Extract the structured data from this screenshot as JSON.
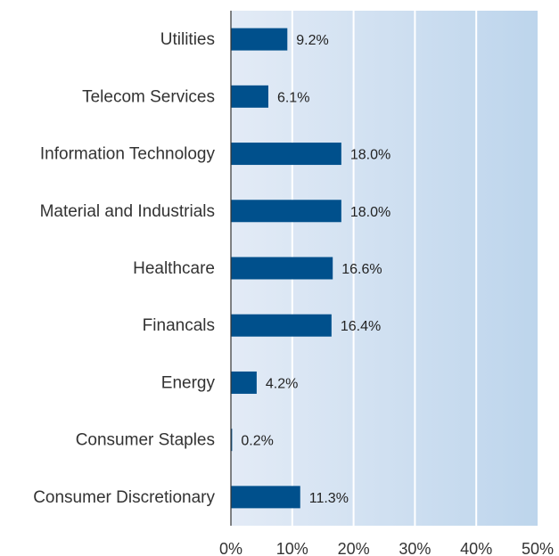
{
  "chart_data": {
    "type": "bar",
    "orientation": "horizontal",
    "categories": [
      "Utilities",
      "Telecom Services",
      "Information Technology",
      "Material and Industrials",
      "Healthcare",
      "Financals",
      "Energy",
      "Consumer Staples",
      "Consumer Discretionary"
    ],
    "values": [
      9.2,
      6.1,
      18.0,
      18.0,
      16.6,
      16.4,
      4.2,
      0.2,
      11.3
    ],
    "value_labels": [
      "9.2%",
      "6.1%",
      "18.0%",
      "18.0%",
      "16.6%",
      "16.4%",
      "4.2%",
      "0.2%",
      "11.3%"
    ],
    "xlim": [
      0,
      50
    ],
    "xticks": [
      "0%",
      "10%",
      "20%",
      "30%",
      "40%",
      "50%"
    ],
    "title": "",
    "xlabel": "",
    "ylabel": "",
    "grid": true,
    "legend": "none",
    "colors": {
      "bar": "#00508c",
      "band_light": "#e3ebf6",
      "band_dark": "#bdd5ec",
      "gridline": "#ffffff",
      "axis": "#333333"
    }
  }
}
